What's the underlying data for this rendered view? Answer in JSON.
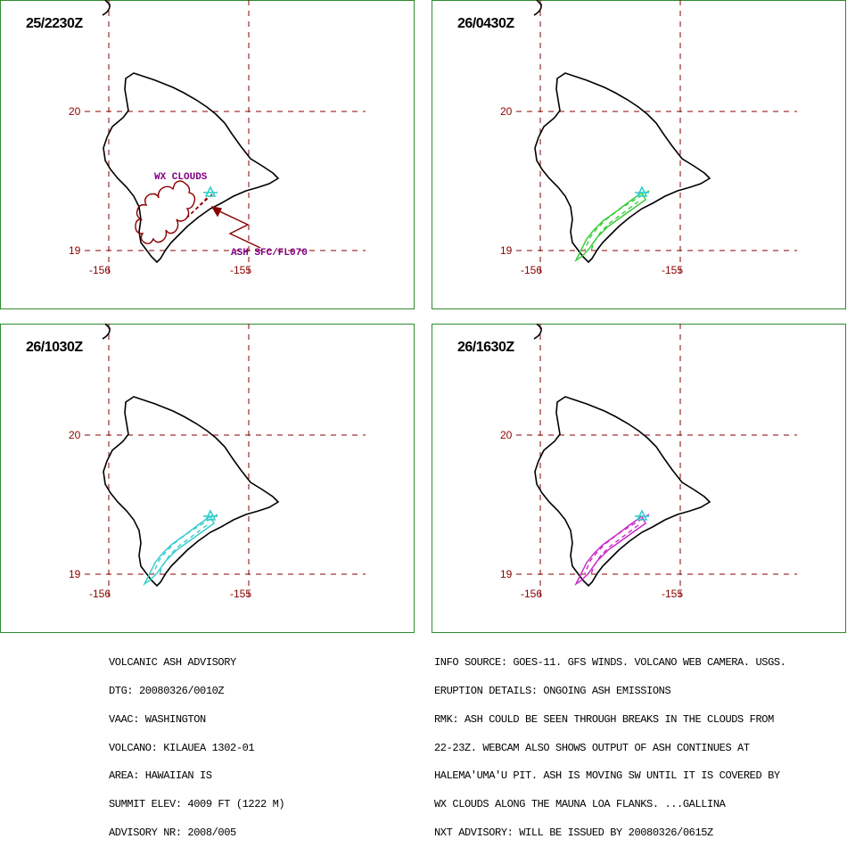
{
  "panels": [
    {
      "time": "25/2230Z",
      "ash_color": "#8b0000"
    },
    {
      "time": "26/0430Z",
      "ash_color": "#33cc33"
    },
    {
      "time": "26/1030Z",
      "ash_color": "#33cccc"
    },
    {
      "time": "26/1630Z",
      "ash_color": "#cc22cc"
    }
  ],
  "grid": {
    "lat_upper": "20",
    "lat_lower": "19",
    "lon_west": "-156",
    "lon_east": "-155"
  },
  "annotations": {
    "wx_clouds": "WX CLOUDS",
    "ash_level": "ASH SFC/FL070"
  },
  "advisory_left": [
    "VOLCANIC ASH ADVISORY",
    "DTG: 20080326/0010Z",
    "VAAC: WASHINGTON",
    "VOLCANO: KILAUEA 1302-01",
    "AREA: HAWAIIAN IS",
    "SUMMIT ELEV: 4009 FT (1222 M)",
    "ADVISORY NR: 2008/005"
  ],
  "advisory_right": [
    "INFO SOURCE: GOES-11. GFS WINDS. VOLCANO WEB CAMERA. USGS.",
    "ERUPTION DETAILS: ONGOING ASH EMISSIONS",
    "RMK: ASH COULD BE SEEN THROUGH BREAKS IN THE CLOUDS FROM",
    "22-23Z. WEBCAM ALSO SHOWS OUTPUT OF ASH CONTINUES AT",
    "HALEMA'UMA'U PIT. ASH IS MOVING SW UNTIL IT IS COVERED BY",
    "WX CLOUDS ALONG THE MAUNA LOA FLANKS. ...GALLINA",
    "NXT ADVISORY: WILL BE ISSUED BY 20080326/0615Z"
  ],
  "colors": {
    "border": "#2e8b2e",
    "grid": "#8b0000",
    "coast": "#000000",
    "volcano": "#33cccc",
    "wx": "#800080"
  }
}
